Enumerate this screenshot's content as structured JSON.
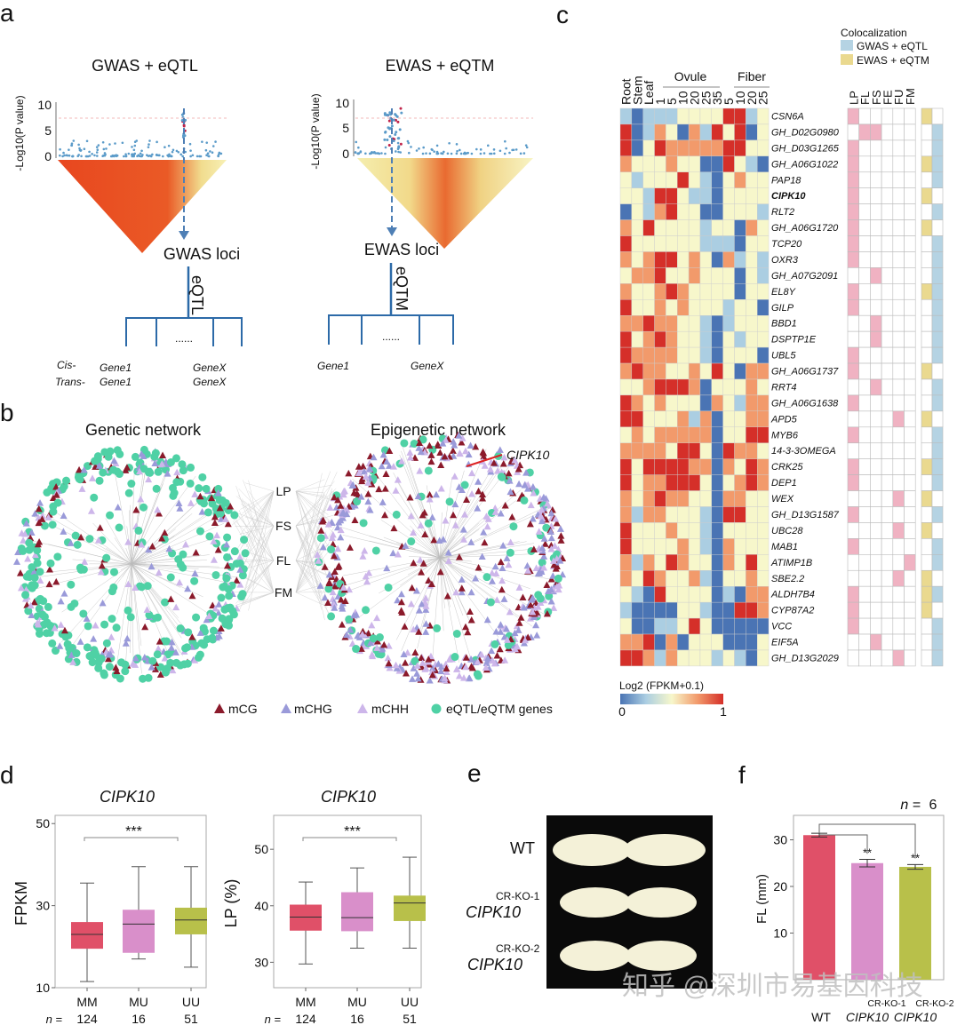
{
  "panel_labels": {
    "a": "a",
    "b": "b",
    "c": "c",
    "d": "d",
    "e": "e",
    "f": "f"
  },
  "panel_a": {
    "left": {
      "title": "GWAS + eQTL",
      "ylabel": "-Log10(P value)",
      "yticks": [
        "10",
        "5",
        "0"
      ],
      "loci_label": "GWAS loci",
      "link_label": "eQTL",
      "dots": "......",
      "cis": "Cis-",
      "trans": "Trans-",
      "gene1": "Gene1",
      "genex": "GeneX"
    },
    "right": {
      "title": "EWAS + eQTM",
      "ylabel": "-Log10(P value)",
      "yticks": [
        "10",
        "5",
        "0"
      ],
      "loci_label": "EWAS loci",
      "link_label": "eQTM",
      "dots": "......",
      "gene1": "Gene1",
      "genex": "GeneX"
    }
  },
  "panel_b": {
    "left_title": "Genetic network",
    "right_title": "Epigenetic network",
    "traits": [
      "LP",
      "FS",
      "FL",
      "FM"
    ],
    "highlight_gene": "CIPK10",
    "legend": [
      {
        "symbol": "triangle",
        "label": "mCG",
        "color": "#8b1a2b"
      },
      {
        "symbol": "triangle",
        "label": "mCHG",
        "color": "#9a9ad9"
      },
      {
        "symbol": "triangle",
        "label": "mCHH",
        "color": "#cdb6ea"
      },
      {
        "symbol": "circle",
        "label": "eQTL/eQTM genes",
        "color": "#4fd1a5"
      }
    ]
  },
  "panel_c": {
    "legend_title": "Colocalization",
    "legend": [
      {
        "label": "GWAS + eQTL",
        "color": "#b5d3e3"
      },
      {
        "label": "EWAS + eQTM",
        "color": "#ead98f"
      }
    ],
    "group_labels": {
      "ovule": "Ovule",
      "fiber": "Fiber"
    },
    "columns": [
      "Root",
      "Stem",
      "Leaf",
      "1",
      "5",
      "10",
      "20",
      "25",
      "35",
      "5",
      "10",
      "20",
      "25"
    ],
    "trait_columns": [
      "LP",
      "FL",
      "FS",
      "FE",
      "FU",
      "FM"
    ],
    "trait_color": "#f0b2c2",
    "colorbar": {
      "label": "Log2 (FPKM+0.1)",
      "min": "0",
      "max": "1",
      "colors": [
        "#4a74b4",
        "#abcee2",
        "#f7f7cb",
        "#f29a6b",
        "#d52f29"
      ]
    },
    "genes": [
      "CSN6A",
      "GH_D02G0980",
      "GH_D03G1265",
      "GH_A06G1022",
      "PAP18",
      "CIPK10",
      "RLT2",
      "GH_A06G1720",
      "TCP20",
      "OXR3",
      "GH_A07G2091",
      "EL8Y",
      "GILP",
      "BBD1",
      "DSPTP1E",
      "UBL5",
      "GH_A06G1737",
      "RRT4",
      "GH_A06G1638",
      "APD5",
      "MYB6",
      "14-3-3OMEGA",
      "CRK25",
      "DEP1",
      "WEX",
      "GH_D13G1587",
      "UBC28",
      "MAB1",
      "ATIMP1B",
      "SBE2.2",
      "ALDH7B4",
      "CYP87A2",
      "VCC",
      "EIF5A",
      "GH_D13G2029"
    ],
    "bold_gene": "CIPK10",
    "expression": [
      [
        0.25,
        0,
        0.25,
        0.25,
        0.25,
        0.5,
        0.5,
        0.5,
        0.5,
        1,
        1,
        0.25,
        0.5
      ],
      [
        1,
        0,
        0.25,
        0.75,
        0.5,
        0,
        0.75,
        0.25,
        1,
        0.5,
        1,
        0,
        0.5
      ],
      [
        1,
        0,
        0.5,
        1,
        0.75,
        0.75,
        0.75,
        0.75,
        0.75,
        1,
        1,
        0.5,
        0.5
      ],
      [
        0.75,
        0.5,
        0.5,
        0.5,
        0.75,
        0.5,
        0.5,
        0,
        0,
        1,
        0.5,
        0.25,
        0
      ],
      [
        0.5,
        0.25,
        0.5,
        0.5,
        0.5,
        1,
        0.5,
        0.25,
        0,
        0.5,
        0.75,
        0.5,
        0.5
      ],
      [
        0.5,
        0.5,
        0.25,
        1,
        1,
        0.5,
        0.25,
        0.25,
        0,
        0.5,
        0.5,
        0.5,
        0.5
      ],
      [
        0,
        0.5,
        0.25,
        0.75,
        1,
        0.5,
        0.5,
        0,
        0,
        0.5,
        0.5,
        0.5,
        0.25
      ],
      [
        0.75,
        0.5,
        1,
        0.5,
        0.5,
        0.5,
        0.5,
        0.25,
        0.5,
        0.5,
        0,
        0.75,
        0.5
      ],
      [
        1,
        0.5,
        0.5,
        0.5,
        0.5,
        0.5,
        0.5,
        0.25,
        0.25,
        0.25,
        0,
        0.5,
        0.5
      ],
      [
        0.75,
        0.5,
        0.75,
        1,
        1,
        0.5,
        0.75,
        0.5,
        0,
        0.75,
        0.25,
        0.5,
        0.25
      ],
      [
        0.5,
        0.75,
        0.75,
        1,
        0.5,
        0.5,
        0.75,
        0.5,
        0.5,
        0.5,
        0,
        0.5,
        0.25
      ],
      [
        0.75,
        0.5,
        0.5,
        0.75,
        1,
        0.75,
        0.5,
        0.5,
        0.5,
        0.5,
        0,
        0.5,
        0.5
      ],
      [
        1,
        0.5,
        0.5,
        0.75,
        0.5,
        0.75,
        0.5,
        0.5,
        0.5,
        0.25,
        0.5,
        0.5,
        0
      ],
      [
        0.75,
        0.75,
        1,
        0.75,
        0.75,
        0.5,
        0.5,
        0.25,
        0,
        0.25,
        0.5,
        0.5,
        0.5
      ],
      [
        1,
        0.5,
        0.75,
        1,
        0.75,
        0.5,
        0.5,
        0.25,
        0,
        0.5,
        0.25,
        0.5,
        0.5
      ],
      [
        1,
        0.75,
        0.75,
        0.75,
        0.75,
        0.5,
        0.5,
        0.25,
        0,
        0.5,
        0.5,
        0.5,
        0
      ],
      [
        0.75,
        1,
        0.75,
        0.75,
        0.5,
        0.5,
        0.75,
        0.5,
        1,
        0.5,
        0,
        0.75,
        0.75
      ],
      [
        0.5,
        0.5,
        0.75,
        1,
        1,
        1,
        0.75,
        0,
        0.5,
        0.5,
        0.5,
        0.75,
        0.5
      ],
      [
        1,
        0.75,
        0.5,
        0.75,
        0.5,
        0.5,
        0.5,
        0,
        0.75,
        0.5,
        0.25,
        0.75,
        0.75
      ],
      [
        1,
        1,
        0.5,
        0.5,
        0.5,
        0.75,
        0.25,
        0.75,
        0,
        0.5,
        0.5,
        0.75,
        0.75
      ],
      [
        0.5,
        0.75,
        0.5,
        0.75,
        0.75,
        0.75,
        0.75,
        0.75,
        0,
        0.5,
        0.5,
        1,
        1
      ],
      [
        0.75,
        0.75,
        0.75,
        0.75,
        0.5,
        1,
        1,
        0.5,
        0,
        1,
        0.75,
        0.75,
        0.5
      ],
      [
        1,
        0.5,
        1,
        1,
        1,
        1,
        0.75,
        0.75,
        0,
        0.75,
        0.5,
        1,
        0.75
      ],
      [
        1,
        0.5,
        0.75,
        0.75,
        1,
        1,
        1,
        0.5,
        0,
        0.5,
        0.75,
        1,
        0.75
      ],
      [
        0.75,
        0.5,
        0.75,
        1,
        0.75,
        0.75,
        0.5,
        0.5,
        0,
        0.75,
        0.75,
        0.5,
        0.5
      ],
      [
        0.75,
        0.25,
        0.75,
        0.75,
        0.5,
        0.5,
        0.5,
        0.25,
        0,
        1,
        1,
        0.5,
        0.5
      ],
      [
        1,
        0.5,
        0.5,
        0.5,
        0.75,
        0.5,
        0.5,
        0.25,
        0,
        0.5,
        0.5,
        0.5,
        0.5
      ],
      [
        1,
        0.5,
        0.5,
        0.5,
        0.5,
        0.75,
        0.5,
        0.25,
        0,
        0.75,
        0.5,
        0.5,
        0.5
      ],
      [
        0.75,
        0.25,
        0.75,
        0.5,
        1,
        0.75,
        0.5,
        0.5,
        0,
        0.75,
        0.5,
        1,
        0.5
      ],
      [
        0.75,
        0.5,
        1,
        0.75,
        0.5,
        0.5,
        0.75,
        0.25,
        0,
        0.5,
        0.5,
        0.75,
        0.5
      ],
      [
        0.5,
        0.25,
        0,
        1,
        0.5,
        0.5,
        0.5,
        0.5,
        0,
        0.25,
        0,
        0.75,
        0.75
      ],
      [
        0.25,
        0,
        0,
        0,
        0,
        0.5,
        0.5,
        0.25,
        0,
        0,
        1,
        1,
        0.75
      ],
      [
        0.5,
        0,
        0,
        0.25,
        0.25,
        0.5,
        1,
        0.5,
        0,
        0,
        0,
        0,
        0
      ],
      [
        0.75,
        0.75,
        1,
        0,
        0.75,
        0,
        0.5,
        0.5,
        0.5,
        0,
        0,
        0,
        0.5
      ],
      [
        1,
        1,
        0.75,
        0.25,
        0.75,
        0.5,
        0.5,
        0.5,
        0.25,
        0.5,
        0.25,
        0,
        0.5
      ]
    ],
    "traits": [
      [
        "LP"
      ],
      [
        "FL",
        "FS"
      ],
      [
        "LP"
      ],
      [
        "LP"
      ],
      [
        "LP"
      ],
      [
        "LP"
      ],
      [
        "LP"
      ],
      [
        "LP"
      ],
      [
        "LP"
      ],
      [
        "LP"
      ],
      [
        "FS"
      ],
      [
        "LP"
      ],
      [
        "LP"
      ],
      [
        "FS"
      ],
      [
        "FS"
      ],
      [
        "LP"
      ],
      [
        "LP"
      ],
      [
        "FS"
      ],
      [
        "LP"
      ],
      [
        "FU"
      ],
      [
        "LP"
      ],
      [],
      [
        "LP"
      ],
      [
        "LP"
      ],
      [
        "FU"
      ],
      [
        "LP"
      ],
      [
        "FU"
      ],
      [
        "LP"
      ],
      [
        "FM"
      ],
      [
        "FU"
      ],
      [
        "LP"
      ],
      [
        "LP"
      ],
      [
        "LP"
      ],
      [
        "FS"
      ],
      [
        "FU"
      ]
    ],
    "colocalization": {
      "ewas_eqtm": [
        1,
        0,
        0,
        1,
        0,
        1,
        0,
        1,
        0,
        0,
        0,
        1,
        0,
        0,
        0,
        0,
        1,
        0,
        0,
        1,
        0,
        0,
        1,
        0,
        1,
        0,
        1,
        0,
        0,
        1,
        1,
        1,
        0,
        0,
        0
      ],
      "gwas_eqtl": [
        0,
        1,
        1,
        1,
        1,
        0,
        1,
        0,
        1,
        1,
        1,
        1,
        1,
        1,
        1,
        1,
        0,
        1,
        1,
        0,
        1,
        1,
        1,
        1,
        0,
        1,
        0,
        1,
        1,
        0,
        1,
        0,
        1,
        1,
        1
      ]
    }
  },
  "panel_d": {
    "chart_data": [
      {
        "type": "box",
        "title": "CIPK10",
        "ylabel": "FPKM",
        "ylim": [
          10,
          52
        ],
        "yticks": [
          "10",
          "30",
          "50"
        ],
        "categories": [
          "MM",
          "MU",
          "UU"
        ],
        "n_prefix": "n =",
        "n": [
          "124",
          "16",
          "51"
        ],
        "colors": [
          "#e05068",
          "#d98fca",
          "#b8c04a"
        ],
        "boxes": [
          {
            "min": 11.5,
            "q1": 19.5,
            "median": 23,
            "q3": 26,
            "max": 35.5
          },
          {
            "min": 17,
            "q1": 18.5,
            "median": 25.5,
            "q3": 29,
            "max": 39.5
          },
          {
            "min": 15,
            "q1": 23,
            "median": 26.5,
            "q3": 29.5,
            "max": 39.5
          }
        ],
        "significance": "***"
      },
      {
        "type": "box",
        "title": "CIPK10",
        "ylabel": "LP (%)",
        "ylim": [
          25.5,
          56
        ],
        "yticks": [
          "30",
          "40",
          "50"
        ],
        "categories": [
          "MM",
          "MU",
          "UU"
        ],
        "n_prefix": "n =",
        "n": [
          "124",
          "16",
          "51"
        ],
        "colors": [
          "#e05068",
          "#d98fca",
          "#b8c04a"
        ],
        "boxes": [
          {
            "min": 29.7,
            "q1": 35.6,
            "median": 38,
            "q3": 40.2,
            "max": 44.2
          },
          {
            "min": 32.5,
            "q1": 35.5,
            "median": 37.9,
            "q3": 42.4,
            "max": 46.7
          },
          {
            "min": 32.5,
            "q1": 37.3,
            "median": 40.5,
            "q3": 41.8,
            "max": 48.6
          }
        ],
        "significance": "***"
      }
    ]
  },
  "panel_e": {
    "wt": "WT",
    "ko1_sup": "CR-KO-1",
    "ko1": "CIPK10",
    "ko2_sup": "CR-KO-2",
    "ko2": "CIPK10"
  },
  "panel_f": {
    "chart_data": {
      "type": "bar",
      "ylabel": "FL (mm)",
      "ylim": [
        0,
        36
      ],
      "yticks": [
        "10",
        "20",
        "30"
      ],
      "n_label": "n =",
      "n": "6",
      "categories": [
        {
          "label": "WT",
          "sup": ""
        },
        {
          "label": "CIPK10",
          "sup": "CR-KO-1"
        },
        {
          "label": "CIPK10",
          "sup": "CR-KO-2"
        }
      ],
      "values": [
        31,
        25,
        24.2
      ],
      "errors": [
        0.4,
        0.8,
        0.5
      ],
      "colors": [
        "#e05068",
        "#d98fca",
        "#b8c04a"
      ],
      "significance": [
        "",
        "**",
        "**"
      ]
    }
  },
  "watermark": "知乎 @深圳市易基因科技"
}
